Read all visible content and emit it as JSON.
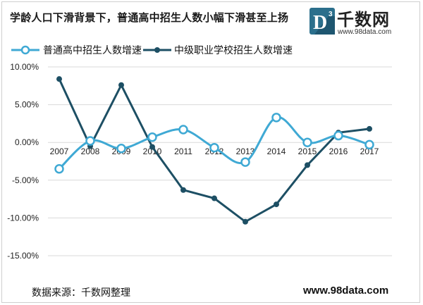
{
  "header": {
    "title": "学龄人口下滑背景下，普通高中招生人数小幅下滑甚至上扬"
  },
  "logo": {
    "badge_letter": "D",
    "badge_sup": "3",
    "name": "千数网",
    "url": "www.98data.com"
  },
  "footer": {
    "source": "数据来源：千数网整理",
    "site": "www.98data.com"
  },
  "colors": {
    "series_light": "#3fa9d4",
    "series_dark": "#1d4f64",
    "grid": "#d9d9d9",
    "logo_badge": "#2b6f8c"
  },
  "chart_data": {
    "type": "line",
    "categories": [
      "2007",
      "2008",
      "2009",
      "2010",
      "2011",
      "2012",
      "2013",
      "2014",
      "2015",
      "2016",
      "2017"
    ],
    "series": [
      {
        "name": "普通高中招生人数增速",
        "values": [
          -3.5,
          0.2,
          -0.8,
          0.7,
          1.7,
          -0.7,
          -2.6,
          3.3,
          0.0,
          0.9,
          -0.3
        ],
        "style": "smooth line with hollow circle markers"
      },
      {
        "name": "中级职业学校招生人数增速",
        "values": [
          8.4,
          -0.5,
          7.6,
          -0.6,
          -6.3,
          -7.4,
          -10.5,
          -8.2,
          -3.0,
          1.3,
          1.8
        ],
        "style": "straight line with filled dot markers"
      }
    ],
    "ylim": [
      -15,
      10
    ],
    "yticks": [
      "10.00%",
      "5.00%",
      "0.00%",
      "-5.00%",
      "-10.00%",
      "-15.00%"
    ],
    "ytick_values": [
      10,
      5,
      0,
      -5,
      -10,
      -15
    ],
    "grid": true,
    "legend": "top-left"
  }
}
